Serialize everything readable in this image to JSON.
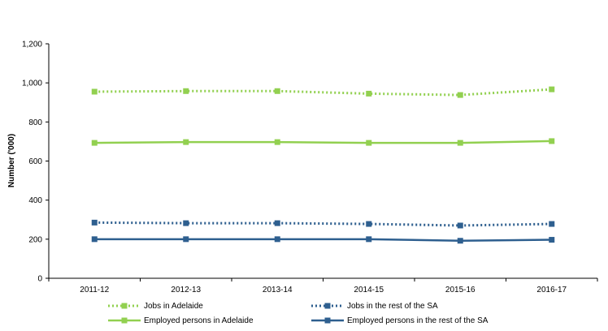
{
  "chart_data": {
    "type": "line",
    "title": "",
    "xlabel": "",
    "ylabel": "Number ('000)",
    "categories": [
      "2011-12",
      "2012-13",
      "2013-14",
      "2014-15",
      "2015-16",
      "2016-17"
    ],
    "y_ticks": [
      "0",
      "200",
      "400",
      "600",
      "800",
      "1,000",
      "1,200"
    ],
    "ylim": [
      0,
      1200
    ],
    "grid": false,
    "legend_placement": "bottom",
    "series": [
      {
        "name": "Jobs in Adelaide",
        "values": [
          955,
          958,
          958,
          945,
          938,
          967
        ],
        "color": "#92d050",
        "style": "dotted"
      },
      {
        "name": "Jobs in the rest of the SA",
        "values": [
          285,
          282,
          282,
          278,
          270,
          278
        ],
        "color": "#2e5f8f",
        "style": "dotted"
      },
      {
        "name": "Employed persons in Adelaide",
        "values": [
          693,
          697,
          697,
          693,
          693,
          702
        ],
        "color": "#92d050",
        "style": "solid"
      },
      {
        "name": "Employed persons in the rest of the SA",
        "values": [
          200,
          200,
          200,
          200,
          192,
          197
        ],
        "color": "#2e5f8f",
        "style": "solid"
      }
    ]
  }
}
